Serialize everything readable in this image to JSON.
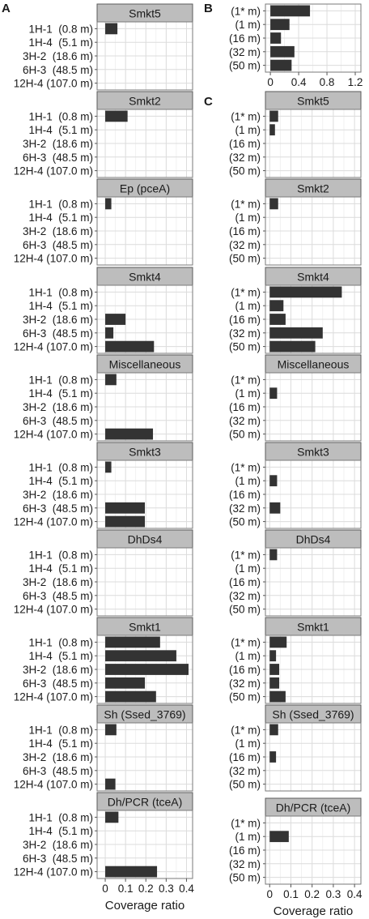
{
  "chart_data": {
    "type": "bar",
    "orientation": "horizontal",
    "colors": {
      "bar": "#333333",
      "strip_fill": "#bdbdbd",
      "strip_border": "#5a5a5a",
      "grid": "#dcdcdc"
    },
    "panel_A": {
      "label": "A",
      "categories": [
        "1H-1  (0.8 m)",
        "1H-4  (5.1 m)",
        "3H-2  (18.6 m)",
        "6H-3  (48.5 m)",
        "12H-4 (107.0 m)"
      ],
      "xlabel": "Coverage ratio",
      "xlim": [
        -0.04,
        0.43
      ],
      "xticks": [
        0,
        0.1,
        0.2,
        0.3,
        0.4
      ],
      "xtick_labels": [
        "0",
        "0.1",
        "0.2",
        "0.3",
        "0.4"
      ],
      "facets": [
        {
          "name": "Smkt5",
          "values": [
            0.06,
            0,
            0,
            0,
            0
          ]
        },
        {
          "name": "Smkt2",
          "values": [
            0.11,
            0,
            0,
            0,
            0
          ]
        },
        {
          "name": "Ep (pceA)",
          "values": [
            0.03,
            0,
            0,
            0,
            0
          ]
        },
        {
          "name": "Smkt4",
          "values": [
            0,
            0,
            0.1,
            0.04,
            0.24
          ]
        },
        {
          "name": "Miscellaneous",
          "values": [
            0.055,
            0,
            0,
            0,
            0.235
          ]
        },
        {
          "name": "Smkt3",
          "values": [
            0.03,
            0,
            0,
            0.195,
            0.195
          ]
        },
        {
          "name": "DhDs4",
          "values": [
            0,
            0,
            0,
            0,
            0
          ]
        },
        {
          "name": "Smkt1",
          "values": [
            0.27,
            0.35,
            0.41,
            0.195,
            0.25
          ]
        },
        {
          "name": "Sh (Ssed_3769)",
          "values": [
            0.055,
            0,
            0,
            0,
            0.05
          ]
        },
        {
          "name": "Dh/PCR (tceA)",
          "values": [
            0.065,
            0,
            0,
            0,
            0.255
          ]
        }
      ]
    },
    "panel_B": {
      "label": "B",
      "categories": [
        "(1* m)",
        "(1 m)",
        "(16 m)",
        "(32 m)",
        "(50 m)"
      ],
      "xlim": [
        -0.07,
        1.28
      ],
      "xticks": [
        0,
        0.4,
        0.8,
        1.2
      ],
      "xtick_labels": [
        "0",
        "0.4",
        "0.8",
        "1.2"
      ],
      "values": [
        0.56,
        0.27,
        0.15,
        0.34,
        0.3
      ]
    },
    "panel_C": {
      "label": "C",
      "categories": [
        "(1* m)",
        "(1 m)",
        "(16 m)",
        "(32 m)",
        "(50 m)"
      ],
      "xlabel": "Coverage ratio",
      "xlim": [
        -0.02,
        0.43
      ],
      "xticks": [
        0,
        0.1,
        0.2,
        0.3,
        0.4
      ],
      "xtick_labels": [
        "0",
        "0.1",
        "0.2",
        "0.3",
        "0.4"
      ],
      "facets": [
        {
          "name": "Smkt5",
          "values": [
            0.04,
            0.025,
            0,
            0,
            0
          ]
        },
        {
          "name": "Smkt2",
          "values": [
            0.04,
            0,
            0,
            0,
            0
          ]
        },
        {
          "name": "Smkt4",
          "values": [
            0.34,
            0.065,
            0.075,
            0.25,
            0.215
          ]
        },
        {
          "name": "Miscellaneous",
          "values": [
            0,
            0.035,
            0,
            0,
            0
          ]
        },
        {
          "name": "Smkt3",
          "values": [
            0,
            0.035,
            0,
            0.05,
            0
          ]
        },
        {
          "name": "DhDs4",
          "values": [
            0.035,
            0,
            0,
            0,
            0
          ]
        },
        {
          "name": "Smkt1",
          "values": [
            0.08,
            0.03,
            0.045,
            0.045,
            0.075
          ]
        },
        {
          "name": "Sh (Ssed_3769)",
          "values": [
            0.04,
            0,
            0.03,
            0,
            0
          ]
        },
        {
          "name": "Dh/PCR (tceA)",
          "values": [
            0,
            0.09,
            0,
            0,
            0
          ]
        }
      ]
    }
  }
}
